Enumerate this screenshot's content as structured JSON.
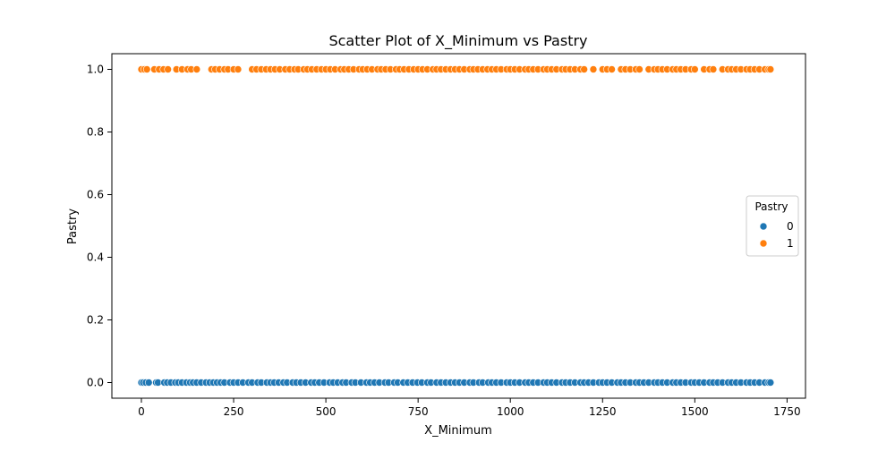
{
  "chart_data": {
    "type": "scatter",
    "title": "Scatter Plot of X_Minimum vs Pastry",
    "xlabel": "X_Minimum",
    "ylabel": "Pastry",
    "xlim": [
      -80,
      1800
    ],
    "ylim": [
      -0.05,
      1.05
    ],
    "x_ticks": [
      0,
      250,
      500,
      750,
      1000,
      1250,
      1500,
      1750
    ],
    "x_tick_labels": [
      "0",
      "250",
      "500",
      "750",
      "1000",
      "1250",
      "1500",
      "1750"
    ],
    "y_ticks": [
      0.0,
      0.2,
      0.4,
      0.6,
      0.8,
      1.0
    ],
    "y_tick_labels": [
      "0.0",
      "0.2",
      "0.4",
      "0.6",
      "0.8",
      "1.0"
    ],
    "grid": false,
    "legend": {
      "title": "Pastry",
      "placement": "center-right",
      "entries": [
        "0",
        "1"
      ]
    },
    "series": [
      {
        "name": "0",
        "color": "#1f77b4",
        "y": 0,
        "x": [
          0,
          5,
          12,
          20,
          40,
          45,
          62,
          70,
          80,
          92,
          100,
          110,
          122,
          132,
          140,
          150,
          162,
          175,
          185,
          195,
          205,
          215,
          225,
          240,
          250,
          262,
          275,
          290,
          300,
          315,
          325,
          340,
          350,
          360,
          372,
          385,
          395,
          410,
          420,
          432,
          445,
          460,
          470,
          482,
          495,
          510,
          520,
          532,
          545,
          555,
          570,
          580,
          595,
          610,
          620,
          632,
          645,
          660,
          670,
          685,
          695,
          710,
          722,
          735,
          748,
          760,
          775,
          785,
          800,
          812,
          825,
          838,
          850,
          862,
          875,
          890,
          900,
          915,
          925,
          940,
          950,
          962,
          975,
          990,
          1000,
          1012,
          1025,
          1040,
          1050,
          1062,
          1075,
          1090,
          1100,
          1112,
          1125,
          1140,
          1150,
          1162,
          1175,
          1190,
          1200,
          1212,
          1225,
          1240,
          1250,
          1262,
          1275,
          1290,
          1300,
          1312,
          1325,
          1340,
          1350,
          1362,
          1375,
          1390,
          1400,
          1412,
          1425,
          1440,
          1450,
          1462,
          1475,
          1490,
          1500,
          1512,
          1525,
          1540,
          1550,
          1562,
          1575,
          1590,
          1600,
          1612,
          1625,
          1640,
          1650,
          1662,
          1675,
          1690,
          1700,
          1705
        ]
      },
      {
        "name": "1",
        "color": "#ff7f0e",
        "y": 1,
        "x": [
          0,
          8,
          15,
          35,
          48,
          60,
          72,
          95,
          110,
          125,
          135,
          150,
          190,
          200,
          212,
          225,
          235,
          250,
          262,
          300,
          312,
          325,
          338,
          350,
          362,
          375,
          390,
          402,
          415,
          425,
          440,
          450,
          462,
          475,
          488,
          500,
          512,
          525,
          540,
          550,
          562,
          575,
          590,
          600,
          612,
          625,
          640,
          650,
          662,
          675,
          690,
          700,
          712,
          725,
          738,
          750,
          762,
          775,
          790,
          800,
          812,
          825,
          838,
          850,
          862,
          875,
          890,
          900,
          912,
          925,
          938,
          950,
          962,
          975,
          990,
          1000,
          1012,
          1025,
          1040,
          1050,
          1062,
          1075,
          1090,
          1100,
          1112,
          1125,
          1140,
          1150,
          1162,
          1175,
          1190,
          1200,
          1225,
          1250,
          1262,
          1275,
          1300,
          1312,
          1325,
          1340,
          1350,
          1375,
          1390,
          1400,
          1412,
          1425,
          1440,
          1450,
          1462,
          1475,
          1490,
          1500,
          1525,
          1540,
          1550,
          1575,
          1590,
          1600,
          1612,
          1625,
          1640,
          1650,
          1662,
          1675,
          1690,
          1700,
          1705
        ]
      }
    ]
  }
}
